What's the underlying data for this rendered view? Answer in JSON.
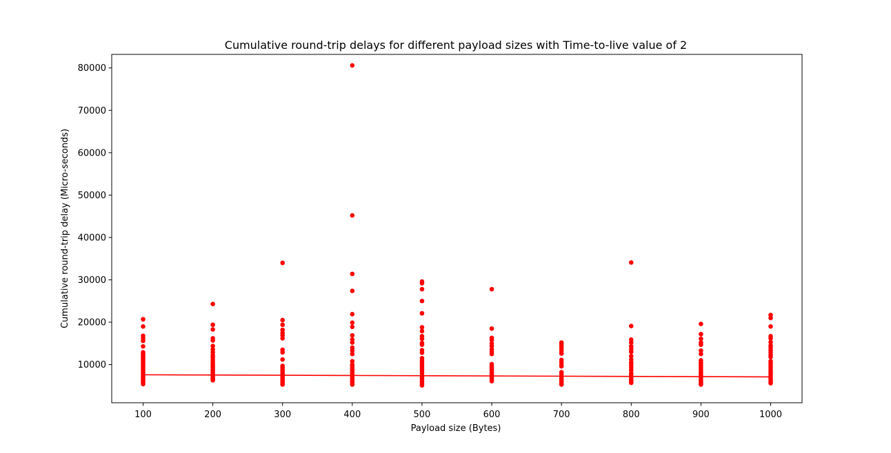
{
  "chart_data": {
    "type": "scatter",
    "title": "Cumulative round-trip delays for different payload sizes with Time-to-live value of 2",
    "xlabel": "Payload size (Bytes)",
    "ylabel": "Cumulative round-trip delay (Micro-seconds)",
    "xlim": [
      55,
      1045
    ],
    "ylim": [
      1000,
      83200
    ],
    "x_ticks": [
      100,
      200,
      300,
      400,
      500,
      600,
      700,
      800,
      900,
      1000
    ],
    "y_ticks": [
      10000,
      20000,
      30000,
      40000,
      50000,
      60000,
      70000,
      80000
    ],
    "grid": false,
    "color": "#ff0000",
    "series": [
      {
        "kind": "points",
        "points": [
          [
            100,
            20700
          ],
          [
            100,
            19000
          ],
          [
            100,
            16800
          ],
          [
            100,
            16200
          ],
          [
            100,
            15600
          ],
          [
            100,
            14300
          ],
          [
            100,
            12900
          ],
          [
            100,
            12500
          ],
          [
            100,
            12100
          ],
          [
            100,
            11700
          ],
          [
            100,
            11300
          ],
          [
            100,
            10900
          ],
          [
            100,
            10500
          ],
          [
            100,
            10100
          ],
          [
            100,
            9700
          ],
          [
            100,
            9300
          ],
          [
            100,
            8900
          ],
          [
            100,
            8500
          ],
          [
            100,
            8100
          ],
          [
            100,
            7700
          ],
          [
            100,
            7300
          ],
          [
            100,
            6900
          ],
          [
            100,
            6500
          ],
          [
            100,
            6100
          ],
          [
            100,
            5700
          ],
          [
            100,
            5400
          ],
          [
            200,
            24300
          ],
          [
            200,
            19400
          ],
          [
            200,
            18300
          ],
          [
            200,
            16200
          ],
          [
            200,
            15700
          ],
          [
            200,
            14400
          ],
          [
            200,
            13600
          ],
          [
            200,
            12900
          ],
          [
            200,
            12200
          ],
          [
            200,
            11700
          ],
          [
            200,
            11100
          ],
          [
            200,
            10600
          ],
          [
            200,
            10100
          ],
          [
            200,
            9700
          ],
          [
            200,
            9300
          ],
          [
            200,
            8900
          ],
          [
            200,
            8500
          ],
          [
            200,
            8100
          ],
          [
            200,
            7700
          ],
          [
            200,
            7400
          ],
          [
            200,
            7100
          ],
          [
            200,
            6800
          ],
          [
            200,
            6500
          ],
          [
            200,
            6300
          ],
          [
            300,
            34000
          ],
          [
            300,
            20500
          ],
          [
            300,
            19400
          ],
          [
            300,
            18200
          ],
          [
            300,
            17500
          ],
          [
            300,
            16900
          ],
          [
            300,
            16200
          ],
          [
            300,
            13500
          ],
          [
            300,
            12900
          ],
          [
            300,
            11200
          ],
          [
            300,
            9700
          ],
          [
            300,
            9300
          ],
          [
            300,
            8900
          ],
          [
            300,
            8500
          ],
          [
            300,
            8100
          ],
          [
            300,
            7700
          ],
          [
            300,
            7300
          ],
          [
            300,
            6900
          ],
          [
            300,
            6500
          ],
          [
            300,
            6100
          ],
          [
            300,
            5700
          ],
          [
            300,
            5300
          ],
          [
            400,
            80600
          ],
          [
            400,
            45200
          ],
          [
            400,
            31400
          ],
          [
            400,
            27400
          ],
          [
            400,
            21900
          ],
          [
            400,
            19900
          ],
          [
            400,
            18900
          ],
          [
            400,
            16900
          ],
          [
            400,
            15900
          ],
          [
            400,
            15200
          ],
          [
            400,
            14000
          ],
          [
            400,
            13300
          ],
          [
            400,
            12500
          ],
          [
            400,
            10800
          ],
          [
            400,
            10000
          ],
          [
            400,
            9600
          ],
          [
            400,
            9200
          ],
          [
            400,
            8800
          ],
          [
            400,
            8400
          ],
          [
            400,
            8000
          ],
          [
            400,
            7600
          ],
          [
            400,
            7200
          ],
          [
            400,
            6800
          ],
          [
            400,
            6400
          ],
          [
            400,
            6000
          ],
          [
            400,
            5600
          ],
          [
            400,
            5300
          ],
          [
            500,
            29600
          ],
          [
            500,
            29200
          ],
          [
            500,
            27800
          ],
          [
            500,
            25000
          ],
          [
            500,
            22100
          ],
          [
            500,
            18800
          ],
          [
            500,
            17900
          ],
          [
            500,
            16700
          ],
          [
            500,
            16100
          ],
          [
            500,
            15100
          ],
          [
            500,
            14700
          ],
          [
            500,
            13400
          ],
          [
            500,
            12800
          ],
          [
            500,
            11500
          ],
          [
            500,
            11000
          ],
          [
            500,
            10500
          ],
          [
            500,
            10000
          ],
          [
            500,
            9500
          ],
          [
            500,
            9000
          ],
          [
            500,
            8500
          ],
          [
            500,
            8000
          ],
          [
            500,
            7500
          ],
          [
            500,
            7000
          ],
          [
            500,
            6500
          ],
          [
            500,
            6000
          ],
          [
            500,
            5500
          ],
          [
            500,
            5100
          ],
          [
            600,
            27800
          ],
          [
            600,
            18500
          ],
          [
            600,
            16300
          ],
          [
            600,
            15800
          ],
          [
            600,
            15000
          ],
          [
            600,
            14400
          ],
          [
            600,
            13600
          ],
          [
            600,
            13000
          ],
          [
            600,
            12500
          ],
          [
            600,
            10100
          ],
          [
            600,
            9700
          ],
          [
            600,
            9300
          ],
          [
            600,
            8900
          ],
          [
            600,
            8500
          ],
          [
            600,
            8100
          ],
          [
            600,
            7700
          ],
          [
            600,
            7300
          ],
          [
            600,
            6900
          ],
          [
            600,
            6500
          ],
          [
            600,
            6100
          ],
          [
            700,
            15200
          ],
          [
            700,
            14800
          ],
          [
            700,
            14300
          ],
          [
            700,
            13800
          ],
          [
            700,
            13200
          ],
          [
            700,
            12600
          ],
          [
            700,
            11100
          ],
          [
            700,
            10600
          ],
          [
            700,
            10100
          ],
          [
            700,
            9600
          ],
          [
            700,
            8200
          ],
          [
            700,
            7700
          ],
          [
            700,
            7200
          ],
          [
            700,
            6800
          ],
          [
            700,
            6400
          ],
          [
            700,
            6000
          ],
          [
            700,
            5600
          ],
          [
            700,
            5300
          ],
          [
            800,
            34100
          ],
          [
            800,
            19100
          ],
          [
            800,
            15900
          ],
          [
            800,
            15200
          ],
          [
            800,
            14300
          ],
          [
            800,
            13600
          ],
          [
            800,
            13000
          ],
          [
            800,
            12000
          ],
          [
            800,
            11200
          ],
          [
            800,
            10500
          ],
          [
            800,
            9900
          ],
          [
            800,
            9300
          ],
          [
            800,
            8700
          ],
          [
            800,
            8000
          ],
          [
            800,
            7500
          ],
          [
            800,
            7000
          ],
          [
            800,
            6500
          ],
          [
            800,
            6100
          ],
          [
            800,
            5700
          ],
          [
            900,
            19600
          ],
          [
            900,
            17200
          ],
          [
            900,
            16100
          ],
          [
            900,
            15200
          ],
          [
            900,
            14700
          ],
          [
            900,
            13300
          ],
          [
            900,
            12500
          ],
          [
            900,
            11000
          ],
          [
            900,
            10400
          ],
          [
            900,
            9900
          ],
          [
            900,
            9400
          ],
          [
            900,
            8900
          ],
          [
            900,
            8400
          ],
          [
            900,
            7900
          ],
          [
            900,
            7400
          ],
          [
            900,
            6900
          ],
          [
            900,
            6400
          ],
          [
            900,
            6000
          ],
          [
            900,
            5600
          ],
          [
            900,
            5300
          ],
          [
            1000,
            21700
          ],
          [
            1000,
            21000
          ],
          [
            1000,
            19000
          ],
          [
            1000,
            16700
          ],
          [
            1000,
            16200
          ],
          [
            1000,
            15300
          ],
          [
            1000,
            14500
          ],
          [
            1000,
            14000
          ],
          [
            1000,
            13400
          ],
          [
            1000,
            12900
          ],
          [
            1000,
            12300
          ],
          [
            1000,
            11800
          ],
          [
            1000,
            10800
          ],
          [
            1000,
            10300
          ],
          [
            1000,
            9800
          ],
          [
            1000,
            9300
          ],
          [
            1000,
            8800
          ],
          [
            1000,
            8300
          ],
          [
            1000,
            7800
          ],
          [
            1000,
            7300
          ],
          [
            1000,
            6800
          ],
          [
            1000,
            6400
          ],
          [
            1000,
            6000
          ],
          [
            1000,
            5600
          ]
        ]
      },
      {
        "kind": "trend-line",
        "x": [
          100,
          1000
        ],
        "y": [
          7600,
          7100
        ]
      }
    ]
  }
}
